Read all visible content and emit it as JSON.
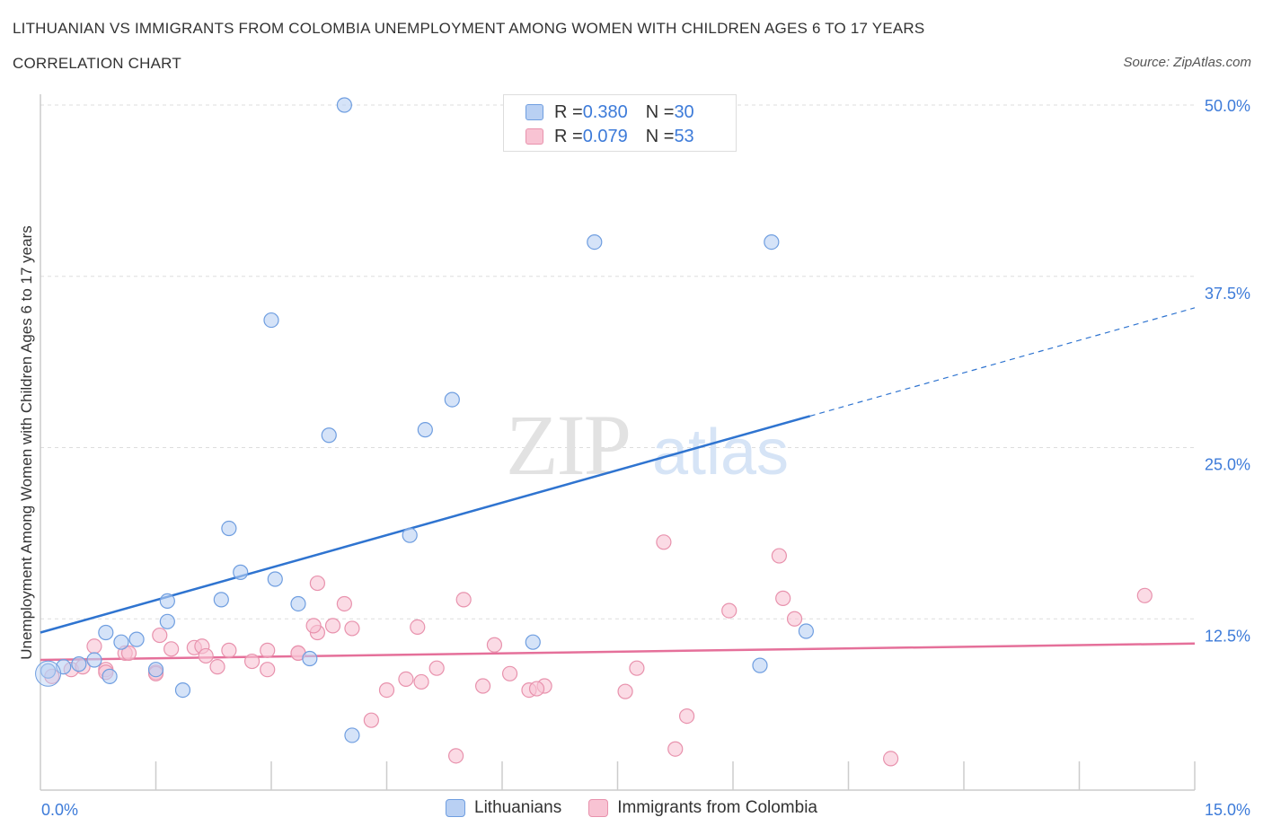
{
  "header": {
    "title": "LITHUANIAN VS IMMIGRANTS FROM COLOMBIA UNEMPLOYMENT AMONG WOMEN WITH CHILDREN AGES 6 TO 17 YEARS",
    "subtitle": "CORRELATION CHART",
    "source": "Source: ZipAtlas.com"
  },
  "legend_top": {
    "rows": [
      {
        "r_label": "R = ",
        "r_value": "0.380",
        "n_label": "N = ",
        "n_value": "30"
      },
      {
        "r_label": "R = ",
        "r_value": "0.079",
        "n_label": "N = ",
        "n_value": "53"
      }
    ]
  },
  "colors": {
    "blue_fill": "#b9d0f3",
    "blue_stroke": "#6f9ee0",
    "blue_line": "#2f74d0",
    "pink_fill": "#f8c3d3",
    "pink_stroke": "#e892ad",
    "pink_line": "#e5709a",
    "axis_text": "#3d7bd9",
    "grid": "#dddddd"
  },
  "chart_data": {
    "type": "scatter",
    "xlabel": "",
    "ylabel": "Unemployment Among Women with Children Ages 6 to 17 years",
    "xlim": [
      0,
      15
    ],
    "ylim": [
      0,
      50
    ],
    "x_tick_labels": [
      "0.0%",
      "15.0%"
    ],
    "y_ticks": [
      12.5,
      25.0,
      37.5,
      50.0
    ],
    "y_tick_labels": [
      "12.5%",
      "25.0%",
      "37.5%",
      "50.0%"
    ],
    "grid": true,
    "legend": "bottom",
    "watermark": "ZIPatlas",
    "series": [
      {
        "name": "Lithuanians",
        "r": 0.38,
        "n": 30,
        "trend": {
          "x0": 0,
          "y0": 11.5,
          "x1": 10.0,
          "y1": 27.3,
          "dashed_to_x": 15.0,
          "dashed_to_y": 35.2
        },
        "points": [
          [
            0.1,
            8.7
          ],
          [
            0.3,
            9.0
          ],
          [
            0.5,
            9.2
          ],
          [
            0.7,
            9.5
          ],
          [
            0.9,
            8.3
          ],
          [
            1.05,
            10.8
          ],
          [
            1.25,
            11.0
          ],
          [
            1.5,
            8.8
          ],
          [
            1.65,
            12.3
          ],
          [
            1.85,
            7.3
          ],
          [
            2.35,
            13.9
          ],
          [
            2.6,
            15.9
          ],
          [
            3.05,
            15.4
          ],
          [
            3.35,
            13.6
          ],
          [
            3.5,
            9.6
          ],
          [
            3.75,
            25.9
          ],
          [
            0.85,
            11.5
          ],
          [
            2.45,
            19.1
          ],
          [
            4.05,
            4.0
          ],
          [
            4.8,
            18.6
          ],
          [
            5.0,
            26.3
          ],
          [
            5.35,
            28.5
          ],
          [
            6.4,
            10.8
          ],
          [
            7.2,
            40.0
          ],
          [
            9.35,
            9.1
          ],
          [
            9.95,
            11.6
          ],
          [
            3.0,
            34.3
          ],
          [
            3.95,
            50.0
          ],
          [
            9.5,
            40.0
          ],
          [
            1.65,
            13.8
          ]
        ]
      },
      {
        "name": "Immigrants from Colombia",
        "r": 0.079,
        "n": 53,
        "trend": {
          "x0": 0,
          "y0": 9.5,
          "x1": 15.0,
          "y1": 10.7
        },
        "points": [
          [
            0.15,
            8.3
          ],
          [
            0.4,
            8.8
          ],
          [
            0.55,
            9.0
          ],
          [
            0.7,
            10.5
          ],
          [
            0.85,
            8.8
          ],
          [
            1.1,
            10.0
          ],
          [
            1.5,
            8.6
          ],
          [
            1.7,
            10.3
          ],
          [
            2.0,
            10.4
          ],
          [
            2.1,
            10.5
          ],
          [
            2.3,
            9.0
          ],
          [
            2.45,
            10.2
          ],
          [
            2.75,
            9.4
          ],
          [
            2.95,
            10.2
          ],
          [
            3.35,
            10.0
          ],
          [
            3.6,
            11.5
          ],
          [
            3.8,
            12.0
          ],
          [
            3.95,
            13.6
          ],
          [
            4.05,
            11.8
          ],
          [
            4.3,
            5.1
          ],
          [
            4.5,
            7.3
          ],
          [
            4.75,
            8.1
          ],
          [
            4.95,
            7.9
          ],
          [
            5.15,
            8.9
          ],
          [
            5.4,
            2.5
          ],
          [
            5.5,
            13.9
          ],
          [
            5.75,
            7.6
          ],
          [
            5.9,
            10.6
          ],
          [
            6.1,
            8.5
          ],
          [
            6.35,
            7.3
          ],
          [
            6.55,
            7.6
          ],
          [
            7.6,
            7.2
          ],
          [
            7.75,
            8.9
          ],
          [
            8.1,
            18.1
          ],
          [
            8.25,
            3.0
          ],
          [
            8.4,
            5.4
          ],
          [
            8.95,
            13.1
          ],
          [
            9.65,
            14.0
          ],
          [
            9.6,
            17.1
          ],
          [
            9.8,
            12.5
          ],
          [
            11.05,
            2.3
          ],
          [
            14.35,
            14.2
          ],
          [
            0.85,
            8.6
          ],
          [
            1.5,
            8.5
          ],
          [
            2.15,
            9.8
          ],
          [
            2.95,
            8.8
          ],
          [
            3.6,
            15.1
          ],
          [
            4.9,
            11.9
          ],
          [
            1.15,
            10.0
          ],
          [
            1.55,
            11.3
          ],
          [
            3.55,
            12.0
          ],
          [
            6.45,
            7.4
          ],
          [
            3.35,
            10.0
          ]
        ]
      }
    ]
  }
}
